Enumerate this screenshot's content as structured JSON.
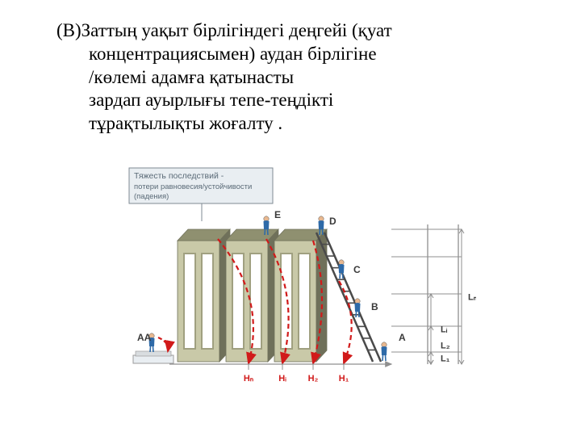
{
  "text": {
    "line1": "(В)Заттың уақыт бірлігіндегі деңгейі (қуат",
    "line2": "концентрациясымен) аудан бірлігіне",
    "line3": "/көлемі адамға қатынасты",
    "line4": "зардап ауырлығы тепе-теңдікті",
    "line5": "тұрақтылықты жоғалту ."
  },
  "legend": {
    "title": "Тяжесть последствий -",
    "sub1": "потери равновесия/устойчивости",
    "sub2": "(падения)"
  },
  "diagram": {
    "background": "#ffffff",
    "wall_face": "#c9c9a8",
    "wall_side": "#8f9070",
    "wall_dark": "#6f705a",
    "slot_inner": "#a0a080",
    "ladder_color": "#4a4a4a",
    "ground_color": "#9b9b9b",
    "legend_bg": "#e9eef2",
    "legend_border": "#7f8a93",
    "legend_text": "#5a6a77",
    "axis_color": "#8f8f8f",
    "arc_color": "#d11a1a",
    "label_color": "#3a3a3a",
    "person_blue": "#2e6aa8",
    "person_skin": "#e8b890",
    "H_labels": [
      "Hₙ",
      "Hᵢ",
      "H₂",
      "H₁"
    ],
    "L_labels": [
      "L₁",
      "L₂",
      "Lᵢ",
      "Lₙ"
    ],
    "side_labels": [
      "A",
      "B",
      "C",
      "D",
      "E"
    ],
    "ground_label": "AA"
  }
}
